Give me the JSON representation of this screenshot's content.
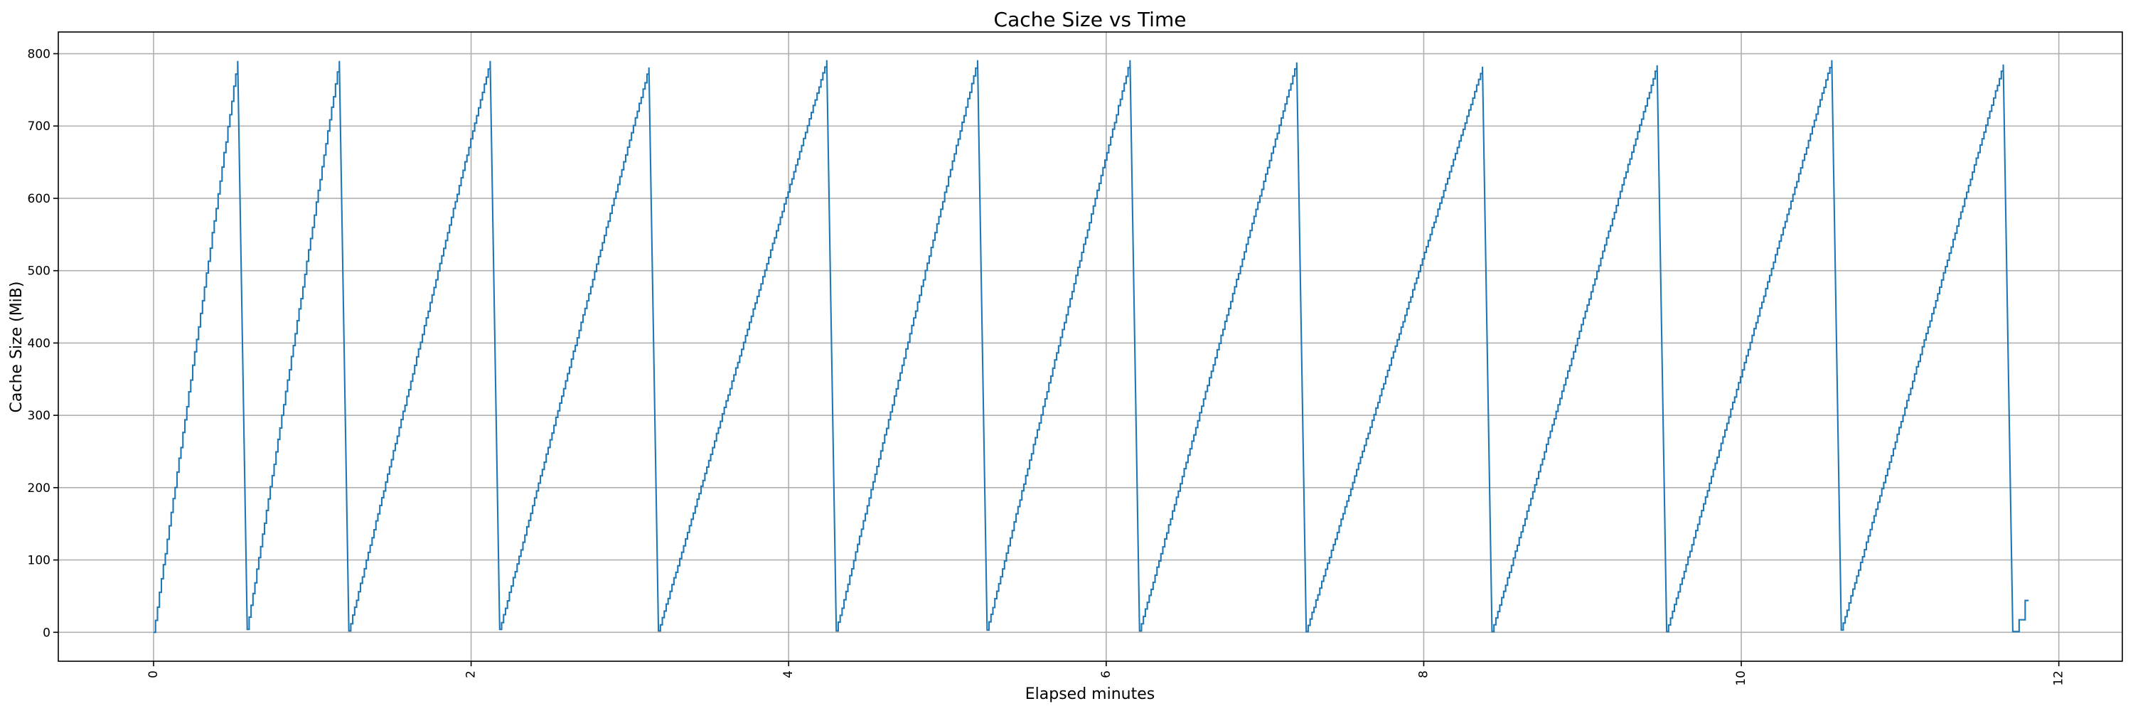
{
  "chart_data": {
    "type": "line",
    "title": "Cache Size vs Time",
    "xlabel": "Elapsed minutes",
    "ylabel": "Cache Size (MiB)",
    "xlim": [
      -0.6,
      12.4
    ],
    "ylim": [
      -40,
      830
    ],
    "x_ticks": [
      0,
      2,
      4,
      6,
      8,
      10,
      12
    ],
    "x_tick_labels": [
      "0",
      "2",
      "4",
      "6",
      "8",
      "10",
      "12"
    ],
    "x_tick_label_rotation": "vertical",
    "y_ticks": [
      0,
      100,
      200,
      300,
      400,
      500,
      600,
      700,
      800
    ],
    "y_tick_labels": [
      "0",
      "100",
      "200",
      "300",
      "400",
      "500",
      "600",
      "700",
      "800"
    ],
    "grid": true,
    "line_color": "#1f77b4",
    "series": [
      {
        "shape": "sawtooth",
        "start": [
          0.0,
          0
        ],
        "cycles": [
          {
            "start_x": 0.0,
            "start_y": 0,
            "peak_x": 0.53,
            "peak_y": 790,
            "reset_x": 0.59,
            "reset_y": 4
          },
          {
            "start_x": 0.59,
            "start_y": 4,
            "peak_x": 1.17,
            "peak_y": 790,
            "reset_x": 1.23,
            "reset_y": 2
          },
          {
            "start_x": 1.23,
            "start_y": 2,
            "peak_x": 2.12,
            "peak_y": 790,
            "reset_x": 2.18,
            "reset_y": 4
          },
          {
            "start_x": 2.18,
            "start_y": 4,
            "peak_x": 3.12,
            "peak_y": 781,
            "reset_x": 3.18,
            "reset_y": 2
          },
          {
            "start_x": 3.18,
            "start_y": 2,
            "peak_x": 4.24,
            "peak_y": 791,
            "reset_x": 4.3,
            "reset_y": 2
          },
          {
            "start_x": 4.3,
            "start_y": 2,
            "peak_x": 5.19,
            "peak_y": 791,
            "reset_x": 5.25,
            "reset_y": 3
          },
          {
            "start_x": 5.25,
            "start_y": 3,
            "peak_x": 6.15,
            "peak_y": 791,
            "reset_x": 6.21,
            "reset_y": 2
          },
          {
            "start_x": 6.21,
            "start_y": 2,
            "peak_x": 7.2,
            "peak_y": 788,
            "reset_x": 7.26,
            "reset_y": 1
          },
          {
            "start_x": 7.26,
            "start_y": 1,
            "peak_x": 8.37,
            "peak_y": 782,
            "reset_x": 8.43,
            "reset_y": 1
          },
          {
            "start_x": 8.43,
            "start_y": 1,
            "peak_x": 9.47,
            "peak_y": 784,
            "reset_x": 9.53,
            "reset_y": 1
          },
          {
            "start_x": 9.53,
            "start_y": 1,
            "peak_x": 10.57,
            "peak_y": 791,
            "reset_x": 10.63,
            "reset_y": 3
          },
          {
            "start_x": 10.63,
            "start_y": 3,
            "peak_x": 11.65,
            "peak_y": 785,
            "reset_x": 11.71,
            "reset_y": 1
          }
        ],
        "end": [
          11.81,
          44
        ]
      }
    ]
  }
}
